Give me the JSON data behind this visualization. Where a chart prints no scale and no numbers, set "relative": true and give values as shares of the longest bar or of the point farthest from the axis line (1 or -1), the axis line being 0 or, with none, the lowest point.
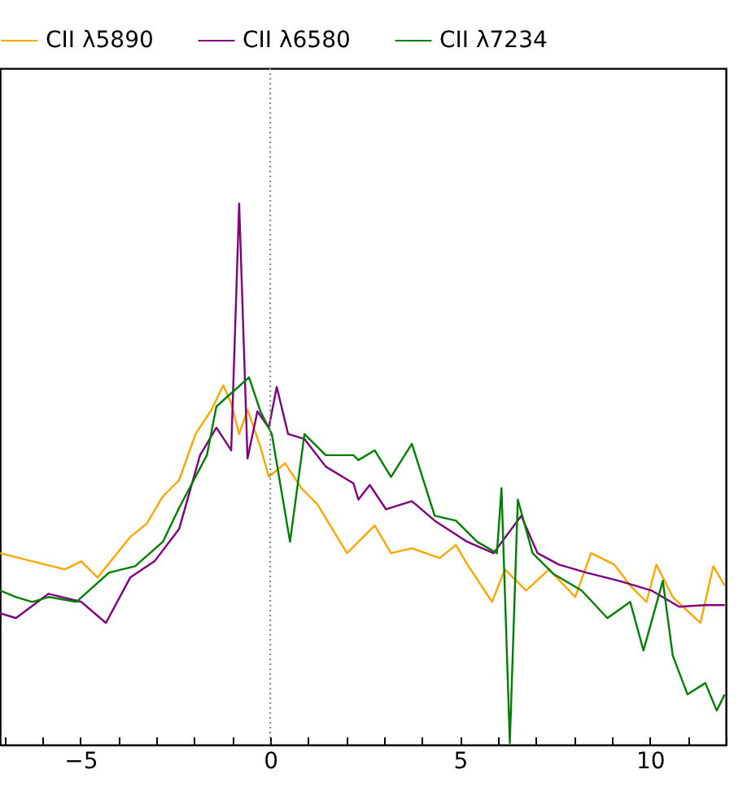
{
  "chart_data": {
    "type": "line",
    "relative": true,
    "legend": "top",
    "xlim": [
      -7.12,
      12
    ],
    "xticks": [
      {
        "value": -7,
        "label": null
      },
      {
        "value": -6,
        "label": null
      },
      {
        "value": -5,
        "label": "−5"
      },
      {
        "value": -4,
        "label": null
      },
      {
        "value": -3,
        "label": null
      },
      {
        "value": -2,
        "label": null
      },
      {
        "value": -1,
        "label": null
      },
      0,
      {
        "value": 1,
        "label": null
      },
      {
        "value": 2,
        "label": null
      },
      {
        "value": 3,
        "label": null
      },
      {
        "value": 4,
        "label": null
      },
      5,
      {
        "value": 6,
        "label": null
      },
      {
        "value": 7,
        "label": null
      },
      {
        "value": 8,
        "label": null
      },
      {
        "value": 9,
        "label": null
      },
      10,
      {
        "value": 11,
        "label": null
      },
      {
        "value": 12,
        "label": null
      }
    ],
    "ref_lines": [
      {
        "axis": "x",
        "value": 0,
        "color": "#808080",
        "line_style": "dotted"
      }
    ],
    "series": [
      {
        "name": "CII λ5890",
        "color": "#ffa500",
        "x": [
          -7.12,
          -6.27,
          -5.41,
          -4.98,
          -4.55,
          -3.69,
          -3.26,
          -2.83,
          -2.4,
          -1.97,
          -1.55,
          -1.24,
          -1.03,
          -0.82,
          -0.6,
          -0.26,
          -0.04,
          0.39,
          0.82,
          1.24,
          2.02,
          2.32,
          2.75,
          3.18,
          3.73,
          4.46,
          4.89,
          5.19,
          5.84,
          6.18,
          6.74,
          7.34,
          8.03,
          8.45,
          9.06,
          9.48,
          9.91,
          10.17,
          10.6,
          11.33,
          11.67,
          11.97
        ],
        "values": [
          0.354,
          0.339,
          0.324,
          0.339,
          0.309,
          0.384,
          0.408,
          0.459,
          0.489,
          0.574,
          0.619,
          0.664,
          0.631,
          0.574,
          0.619,
          0.55,
          0.495,
          0.52,
          0.474,
          0.444,
          0.354,
          0.375,
          0.405,
          0.354,
          0.363,
          0.345,
          0.369,
          0.333,
          0.264,
          0.324,
          0.285,
          0.324,
          0.273,
          0.354,
          0.333,
          0.294,
          0.264,
          0.333,
          0.273,
          0.225,
          0.33,
          0.294
        ]
      },
      {
        "name": "CII λ6580",
        "color": "#800080",
        "x": [
          -7.12,
          -6.7,
          -5.84,
          -4.98,
          -4.33,
          -3.69,
          -3.05,
          -2.4,
          -1.85,
          -1.42,
          -1.03,
          -0.82,
          -0.6,
          -0.34,
          -0.04,
          0.17,
          0.47,
          0.9,
          1.46,
          2.19,
          2.32,
          2.62,
          3.05,
          3.73,
          4.33,
          5.19,
          5.88,
          6.61,
          7.04,
          7.6,
          8.33,
          9.18,
          10.04,
          10.77,
          11.46,
          11.97
        ],
        "values": [
          0.243,
          0.234,
          0.279,
          0.264,
          0.225,
          0.309,
          0.339,
          0.399,
          0.535,
          0.586,
          0.544,
          1.0,
          0.529,
          0.616,
          0.586,
          0.661,
          0.574,
          0.565,
          0.514,
          0.483,
          0.453,
          0.48,
          0.435,
          0.45,
          0.414,
          0.375,
          0.354,
          0.423,
          0.354,
          0.333,
          0.318,
          0.303,
          0.285,
          0.255,
          0.258,
          0.258
        ]
      },
      {
        "name": "CII λ7234",
        "color": "#008000",
        "x": [
          -7.12,
          -6.7,
          -6.27,
          -5.84,
          -5.11,
          -4.25,
          -3.56,
          -2.83,
          -2.4,
          -1.67,
          -1.42,
          -0.56,
          -0.26,
          0.04,
          0.52,
          0.9,
          1.46,
          2.19,
          2.32,
          2.75,
          3.18,
          3.73,
          4.33,
          4.89,
          5.45,
          5.97,
          6.09,
          6.31,
          6.52,
          6.91,
          7.47,
          8.2,
          8.88,
          9.48,
          9.83,
          10.34,
          10.6,
          10.99,
          11.46,
          11.76,
          11.97
        ],
        "values": [
          0.285,
          0.273,
          0.264,
          0.273,
          0.264,
          0.318,
          0.33,
          0.375,
          0.438,
          0.535,
          0.625,
          0.679,
          0.616,
          0.574,
          0.375,
          0.574,
          0.535,
          0.535,
          0.526,
          0.544,
          0.495,
          0.556,
          0.423,
          0.414,
          0.375,
          0.354,
          0.474,
          0.003,
          0.453,
          0.354,
          0.315,
          0.285,
          0.234,
          0.264,
          0.174,
          0.303,
          0.165,
          0.093,
          0.114,
          0.063,
          0.093
        ]
      }
    ]
  }
}
